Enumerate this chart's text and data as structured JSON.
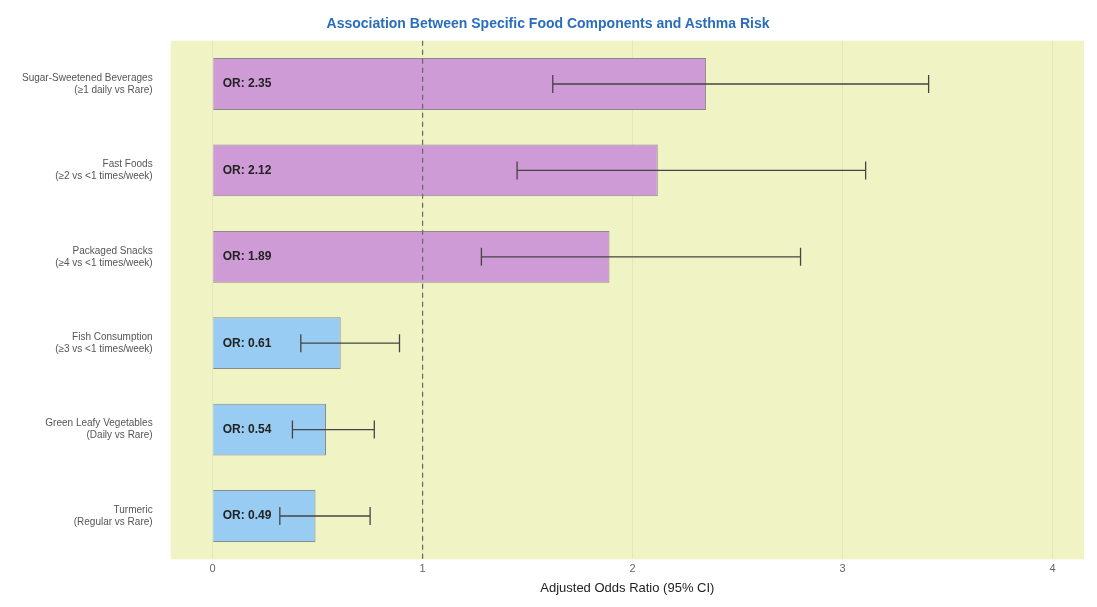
{
  "chart_data": {
    "type": "bar",
    "orientation": "horizontal",
    "title": "Association Between Specific Food Components and Asthma Risk",
    "xlabel": "Adjusted Odds Ratio (95% CI)",
    "categories": [
      "Sugar-Sweetened Beverages\n(≥1 daily vs Rare)",
      "Fast Foods\n(≥2 vs <1 times/week)",
      "Packaged Snacks\n(≥4 vs <1 times/week)",
      "Fish Consumption\n(≥3 vs <1 times/week)",
      "Green Leafy Vegetables\n(Daily vs Rare)",
      "Turmeric\n(Regular vs Rare)"
    ],
    "values": [
      2.35,
      2.12,
      1.89,
      0.61,
      0.54,
      0.49
    ],
    "colors": [
      "#cf9bd6",
      "#cf9bd6",
      "#cf9bd6",
      "#99ccf2",
      "#99ccf2",
      "#99ccf2"
    ],
    "errors": [
      [
        1.62,
        3.41
      ],
      [
        1.45,
        3.11
      ],
      [
        1.28,
        2.8
      ],
      [
        0.42,
        0.89
      ],
      [
        0.38,
        0.77
      ],
      [
        0.32,
        0.75
      ]
    ],
    "value_labels": [
      "OR: 2.35",
      "OR: 2.12",
      "OR: 1.89",
      "OR: 0.61",
      "OR: 0.54",
      "OR: 0.49"
    ],
    "xlim": [
      -0.2,
      4.15
    ],
    "xticks": [
      0,
      1,
      2,
      3,
      4
    ],
    "ref_lines": [
      {
        "axis": "x",
        "value": 1,
        "line_style": "dashed",
        "color": "#666666"
      }
    ],
    "grid": "x"
  }
}
